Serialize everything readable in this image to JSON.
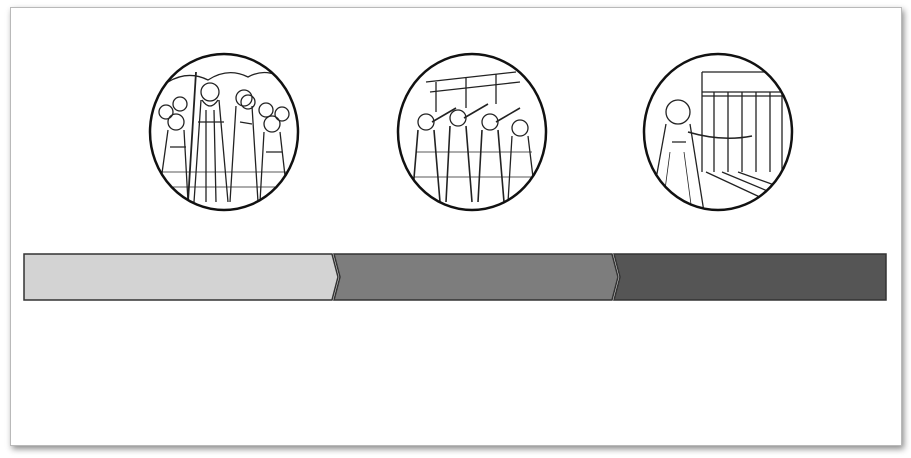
{
  "scenes": [
    {
      "icon": "crowd-procession-illustration"
    },
    {
      "icon": "trumpeters-illustration"
    },
    {
      "icon": "temple-figure-illustration"
    }
  ],
  "timeline": {
    "segments": [
      {
        "fill": "#d3d3d3"
      },
      {
        "fill": "#7d7d7d"
      },
      {
        "fill": "#555555"
      }
    ],
    "outline": "#333333"
  }
}
